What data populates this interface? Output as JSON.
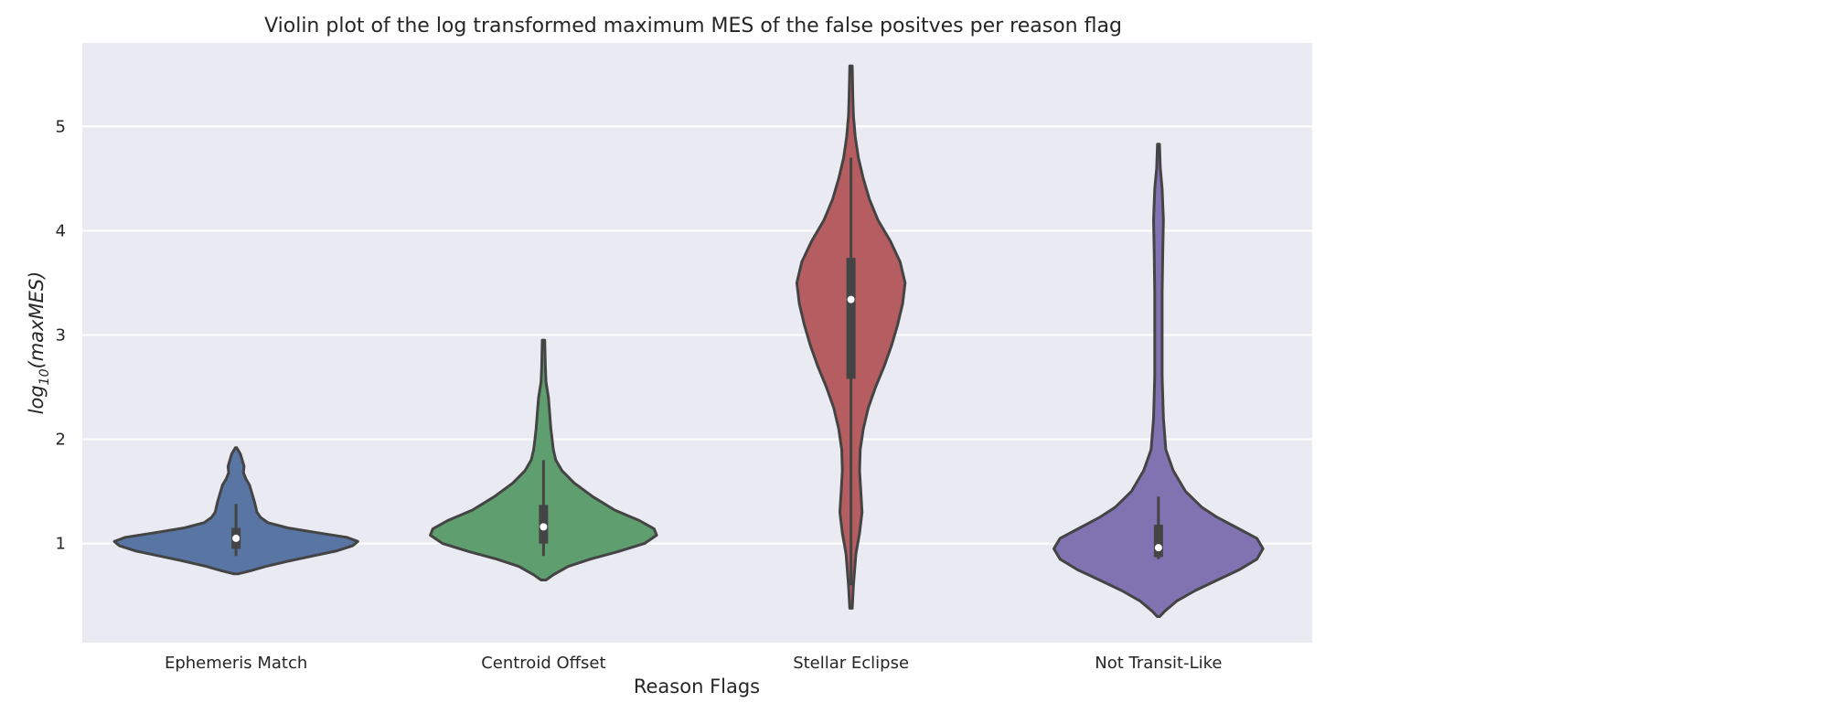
{
  "chart_data": {
    "type": "violin",
    "title": "Violin plot of the log transformed maximum MES of the false positves per reason flag",
    "xlabel": "Reason Flags",
    "ylabel": {
      "base": "log",
      "subscript": "10",
      "arg": "(maxMES)"
    },
    "ylim": [
      0.05,
      5.8
    ],
    "yticks": [
      1,
      2,
      3,
      4,
      5
    ],
    "grid": true,
    "background": "#eaeaf2",
    "categories": [
      "Ephemeris Match",
      "Centroid Offset",
      "Stellar Eclipse",
      "Not Transit-Like"
    ],
    "violins": [
      {
        "category": "Ephemeris Match",
        "color": "#5975a4",
        "min": 0.88,
        "q1": 0.95,
        "median": 1.05,
        "q3": 1.15,
        "max": 1.38,
        "profile": [
          [
            0.71,
            0.02
          ],
          [
            0.74,
            0.12
          ],
          [
            0.78,
            0.24
          ],
          [
            0.83,
            0.42
          ],
          [
            0.88,
            0.62
          ],
          [
            0.93,
            0.82
          ],
          [
            0.98,
            0.95
          ],
          [
            1.02,
            0.99
          ],
          [
            1.06,
            0.9
          ],
          [
            1.1,
            0.68
          ],
          [
            1.15,
            0.42
          ],
          [
            1.2,
            0.26
          ],
          [
            1.25,
            0.2
          ],
          [
            1.3,
            0.17
          ],
          [
            1.4,
            0.15
          ],
          [
            1.48,
            0.13
          ],
          [
            1.56,
            0.11
          ],
          [
            1.62,
            0.08
          ],
          [
            1.68,
            0.06
          ],
          [
            1.74,
            0.065
          ],
          [
            1.8,
            0.05
          ],
          [
            1.86,
            0.035
          ],
          [
            1.92,
            0.005
          ]
        ]
      },
      {
        "category": "Centroid Offset",
        "color": "#5f9e6e",
        "min": 0.88,
        "q1": 1.0,
        "median": 1.16,
        "q3": 1.37,
        "max": 1.8,
        "profile": [
          [
            0.65,
            0.02
          ],
          [
            0.7,
            0.08
          ],
          [
            0.78,
            0.2
          ],
          [
            0.85,
            0.38
          ],
          [
            0.92,
            0.6
          ],
          [
            1.0,
            0.82
          ],
          [
            1.08,
            0.92
          ],
          [
            1.14,
            0.9
          ],
          [
            1.22,
            0.78
          ],
          [
            1.32,
            0.58
          ],
          [
            1.45,
            0.4
          ],
          [
            1.58,
            0.25
          ],
          [
            1.7,
            0.15
          ],
          [
            1.8,
            0.1
          ],
          [
            1.9,
            0.08
          ],
          [
            2.0,
            0.07
          ],
          [
            2.1,
            0.06
          ],
          [
            2.25,
            0.05
          ],
          [
            2.4,
            0.04
          ],
          [
            2.55,
            0.02
          ],
          [
            2.7,
            0.015
          ],
          [
            2.95,
            0.01
          ]
        ]
      },
      {
        "category": "Stellar Eclipse",
        "color": "#b55d60",
        "min": 0.6,
        "q1": 2.58,
        "median": 3.34,
        "q3": 3.74,
        "max": 4.7,
        "profile": [
          [
            0.38,
            0.01
          ],
          [
            0.6,
            0.02
          ],
          [
            0.9,
            0.04
          ],
          [
            1.1,
            0.07
          ],
          [
            1.3,
            0.09
          ],
          [
            1.5,
            0.08
          ],
          [
            1.7,
            0.07
          ],
          [
            1.9,
            0.075
          ],
          [
            2.1,
            0.1
          ],
          [
            2.3,
            0.14
          ],
          [
            2.5,
            0.2
          ],
          [
            2.7,
            0.27
          ],
          [
            2.9,
            0.33
          ],
          [
            3.1,
            0.38
          ],
          [
            3.3,
            0.42
          ],
          [
            3.5,
            0.44
          ],
          [
            3.7,
            0.4
          ],
          [
            3.9,
            0.32
          ],
          [
            4.1,
            0.22
          ],
          [
            4.3,
            0.15
          ],
          [
            4.5,
            0.1
          ],
          [
            4.7,
            0.06
          ],
          [
            4.9,
            0.035
          ],
          [
            5.1,
            0.02
          ],
          [
            5.3,
            0.015
          ],
          [
            5.58,
            0.01
          ]
        ]
      },
      {
        "category": "Not Transit-Like",
        "color": "#8172b2",
        "min": 0.85,
        "q1": 0.87,
        "median": 0.96,
        "q3": 1.18,
        "max": 1.45,
        "profile": [
          [
            0.3,
            0.01
          ],
          [
            0.35,
            0.05
          ],
          [
            0.45,
            0.15
          ],
          [
            0.55,
            0.3
          ],
          [
            0.65,
            0.48
          ],
          [
            0.75,
            0.66
          ],
          [
            0.85,
            0.8
          ],
          [
            0.95,
            0.85
          ],
          [
            1.05,
            0.8
          ],
          [
            1.15,
            0.64
          ],
          [
            1.25,
            0.48
          ],
          [
            1.35,
            0.35
          ],
          [
            1.5,
            0.22
          ],
          [
            1.7,
            0.12
          ],
          [
            1.9,
            0.06
          ],
          [
            2.2,
            0.04
          ],
          [
            2.6,
            0.03
          ],
          [
            3.0,
            0.03
          ],
          [
            3.4,
            0.03
          ],
          [
            3.8,
            0.035
          ],
          [
            4.1,
            0.04
          ],
          [
            4.4,
            0.03
          ],
          [
            4.6,
            0.015
          ],
          [
            4.83,
            0.008
          ]
        ]
      }
    ]
  }
}
